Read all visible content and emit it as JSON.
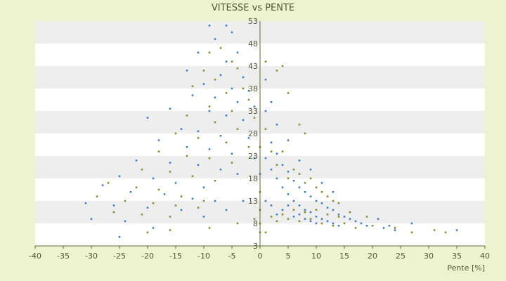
{
  "chart_data": {
    "type": "scatter",
    "title": "VITESSE vs PENTE",
    "xlabel": "Pente [%]",
    "ylabel": "",
    "xlim": [
      -40,
      40
    ],
    "ylim": [
      3,
      53
    ],
    "xticks": [
      "-40",
      "-35",
      "-30",
      "-25",
      "-20",
      "-15",
      "-10",
      "-5",
      "0",
      "5",
      "10",
      "15",
      "20",
      "25",
      "30",
      "35",
      "40"
    ],
    "yticks": [
      "3",
      "8",
      "13",
      "18",
      "23",
      "28",
      "33",
      "38",
      "43",
      "48",
      "53"
    ],
    "grid": true,
    "legend": "none",
    "colors": {
      "background": "#eef3cf",
      "plot_band_light": "#ffffff",
      "plot_band_dark": "#eeeeee",
      "axis": "#556b2f",
      "series_blue": "#3a7fd0",
      "series_olive": "#8c8c2a"
    },
    "series": [
      {
        "color": "#3a7fd0",
        "points": [
          [
            -9,
            52
          ],
          [
            -6,
            52
          ],
          [
            -5,
            50.5
          ],
          [
            -8,
            49
          ],
          [
            -11,
            46
          ],
          [
            -4,
            46
          ],
          [
            -6,
            44
          ],
          [
            -13,
            42
          ],
          [
            -7,
            41
          ],
          [
            -3,
            40.5
          ],
          [
            -10,
            39
          ],
          [
            -5,
            38
          ],
          [
            -2,
            37.5
          ],
          [
            -12,
            36.5
          ],
          [
            -8,
            36
          ],
          [
            -4,
            35
          ],
          [
            -1,
            34
          ],
          [
            -16,
            33.5
          ],
          [
            -9,
            33
          ],
          [
            -6,
            32
          ],
          [
            -3,
            31
          ],
          [
            -20,
            31.5
          ],
          [
            -14,
            29
          ],
          [
            -11,
            28.5
          ],
          [
            -7,
            27.5
          ],
          [
            -2,
            27
          ],
          [
            -18,
            26.5
          ],
          [
            -13,
            25
          ],
          [
            -9,
            24.5
          ],
          [
            -5,
            23.5
          ],
          [
            -1,
            22.5
          ],
          [
            -22,
            22
          ],
          [
            -16,
            21.5
          ],
          [
            -11,
            21
          ],
          [
            -7,
            20
          ],
          [
            -4,
            19
          ],
          [
            -25,
            18.5
          ],
          [
            -19,
            18
          ],
          [
            -15,
            17
          ],
          [
            -10,
            16
          ],
          [
            -28,
            16.5
          ],
          [
            -23,
            15
          ],
          [
            -17,
            14.5
          ],
          [
            -12,
            13.5
          ],
          [
            -8,
            13
          ],
          [
            -31,
            12.5
          ],
          [
            -26,
            12
          ],
          [
            -20,
            11.5
          ],
          [
            -14,
            11
          ],
          [
            -30,
            9
          ],
          [
            -24,
            8.5
          ],
          [
            -25,
            5
          ],
          [
            -19,
            7
          ],
          [
            -10,
            9.5
          ],
          [
            -6,
            11
          ],
          [
            -3,
            13
          ],
          [
            1,
            33
          ],
          [
            2,
            26
          ],
          [
            1,
            22.5
          ],
          [
            3,
            23.5
          ],
          [
            2,
            20
          ],
          [
            4,
            21
          ],
          [
            3,
            18
          ],
          [
            5,
            19.5
          ],
          [
            4,
            16
          ],
          [
            6,
            17.5
          ],
          [
            5,
            14.5
          ],
          [
            7,
            16
          ],
          [
            6,
            13
          ],
          [
            8,
            15
          ],
          [
            7,
            12
          ],
          [
            9,
            14
          ],
          [
            8,
            11
          ],
          [
            10,
            13
          ],
          [
            9,
            10.5
          ],
          [
            11,
            12.5
          ],
          [
            10,
            9.5
          ],
          [
            12,
            11.5
          ],
          [
            11,
            9
          ],
          [
            13,
            11
          ],
          [
            12,
            8.5
          ],
          [
            14,
            10
          ],
          [
            13,
            8
          ],
          [
            15,
            9.5
          ],
          [
            14,
            7.5
          ],
          [
            16,
            9
          ],
          [
            17,
            8.5
          ],
          [
            18,
            8
          ],
          [
            19,
            7.5
          ],
          [
            21,
            9
          ],
          [
            22,
            7
          ],
          [
            23,
            7.5
          ],
          [
            24,
            6.5
          ],
          [
            27,
            8
          ],
          [
            1,
            40
          ],
          [
            2,
            35
          ],
          [
            3,
            30
          ],
          [
            5,
            26.5
          ],
          [
            7,
            22
          ],
          [
            9,
            20
          ],
          [
            11,
            17
          ],
          [
            13,
            15
          ],
          [
            0,
            19
          ],
          [
            1,
            13
          ],
          [
            2,
            12
          ],
          [
            3,
            10
          ],
          [
            4,
            11
          ],
          [
            5,
            12
          ],
          [
            6,
            9.5
          ],
          [
            7,
            10
          ],
          [
            8,
            9
          ],
          [
            9,
            8.5
          ],
          [
            10,
            8
          ],
          [
            35,
            6.5
          ]
        ]
      },
      {
        "color": "#8c8c2a",
        "points": [
          [
            -7,
            47
          ],
          [
            -9,
            46
          ],
          [
            -5,
            44
          ],
          [
            -10,
            42
          ],
          [
            -4,
            42.5
          ],
          [
            -8,
            40
          ],
          [
            -3,
            38
          ],
          [
            -12,
            38.5
          ],
          [
            -6,
            37
          ],
          [
            -2,
            35.5
          ],
          [
            -9,
            34
          ],
          [
            -5,
            33
          ],
          [
            -13,
            32
          ],
          [
            -1,
            31.5
          ],
          [
            -8,
            30.5
          ],
          [
            -4,
            29
          ],
          [
            -15,
            28
          ],
          [
            -11,
            27
          ],
          [
            -6,
            26
          ],
          [
            -2,
            25
          ],
          [
            -18,
            24
          ],
          [
            -13,
            23
          ],
          [
            -9,
            22.5
          ],
          [
            -5,
            21.5
          ],
          [
            -21,
            20
          ],
          [
            -16,
            19.5
          ],
          [
            -12,
            18.5
          ],
          [
            -8,
            17.5
          ],
          [
            -27,
            17
          ],
          [
            -22,
            16
          ],
          [
            -18,
            15.5
          ],
          [
            -14,
            14
          ],
          [
            -10,
            13
          ],
          [
            -29,
            14
          ],
          [
            -24,
            13
          ],
          [
            -19,
            12.5
          ],
          [
            -15,
            12
          ],
          [
            -11,
            11.5
          ],
          [
            -26,
            10.5
          ],
          [
            -21,
            10
          ],
          [
            -16,
            9.5
          ],
          [
            -20,
            6
          ],
          [
            -16,
            6.5
          ],
          [
            -9,
            7
          ],
          [
            -4,
            8
          ],
          [
            -1,
            9
          ],
          [
            1,
            6
          ],
          [
            2,
            9.5
          ],
          [
            3,
            8.5
          ],
          [
            4,
            10
          ],
          [
            5,
            9
          ],
          [
            6,
            11
          ],
          [
            7,
            8.5
          ],
          [
            8,
            10.5
          ],
          [
            9,
            9
          ],
          [
            10,
            11
          ],
          [
            11,
            8
          ],
          [
            12,
            10
          ],
          [
            13,
            7.5
          ],
          [
            14,
            9.5
          ],
          [
            15,
            8
          ],
          [
            16,
            10.5
          ],
          [
            17,
            7
          ],
          [
            19,
            9.5
          ],
          [
            20,
            7.5
          ],
          [
            24,
            7
          ],
          [
            27,
            6
          ],
          [
            31,
            6.5
          ],
          [
            33,
            6
          ],
          [
            1,
            29
          ],
          [
            2,
            24
          ],
          [
            3,
            21
          ],
          [
            4,
            24
          ],
          [
            5,
            18
          ],
          [
            6,
            20
          ],
          [
            7,
            19
          ],
          [
            8,
            17
          ],
          [
            9,
            18
          ],
          [
            10,
            16
          ],
          [
            11,
            15
          ],
          [
            12,
            14
          ],
          [
            13,
            13
          ],
          [
            14,
            12.5
          ],
          [
            3,
            42
          ],
          [
            1,
            44
          ],
          [
            4,
            43
          ],
          [
            5,
            37
          ],
          [
            7,
            30
          ],
          [
            8,
            28
          ],
          [
            0,
            25
          ],
          [
            0,
            15
          ],
          [
            0,
            11
          ],
          [
            0,
            8
          ],
          [
            0,
            6
          ]
        ]
      }
    ]
  }
}
